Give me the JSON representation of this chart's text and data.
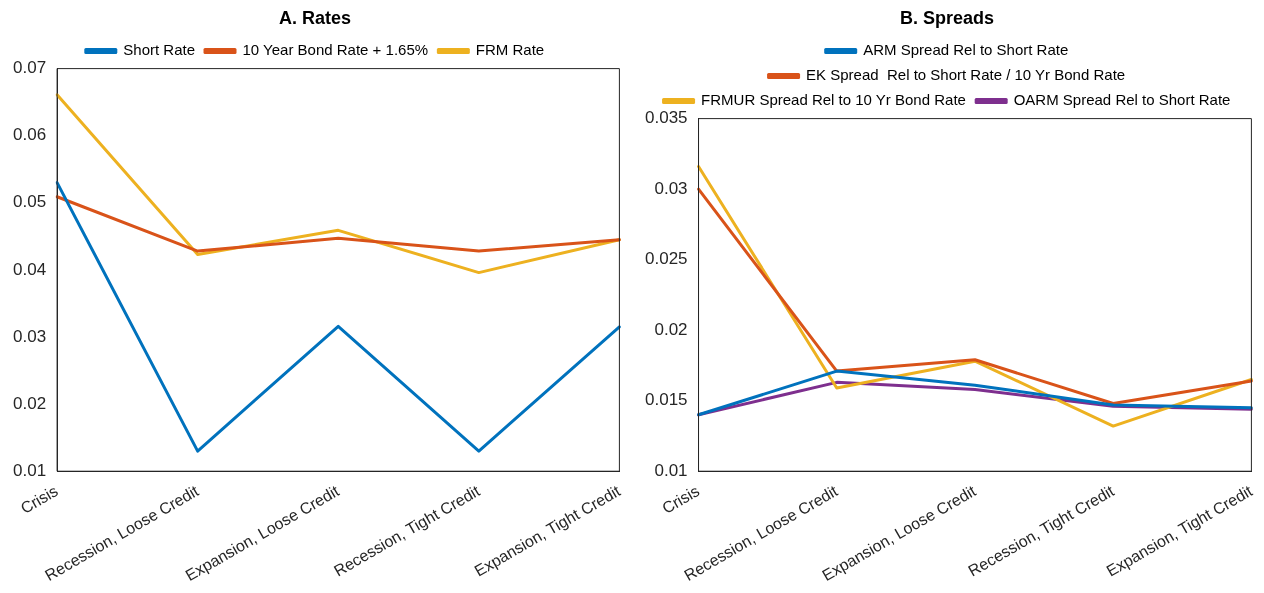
{
  "chart_data": [
    {
      "type": "line",
      "title": "A. Rates",
      "categories": [
        "Crisis",
        "Recession, Loose Credit",
        "Expansion, Loose Credit",
        "Recession, Tight Credit",
        "Expansion, Tight Credit"
      ],
      "series": [
        {
          "name": "Short Rate",
          "color": "#0072bd",
          "values": [
            0.053,
            0.013,
            0.0316,
            0.013,
            0.0315
          ]
        },
        {
          "name": "10 Year Bond Rate + 1.65%",
          "color": "#d95319",
          "values": [
            0.0509,
            0.0428,
            0.0447,
            0.0428,
            0.0445
          ]
        },
        {
          "name": "FRM Rate",
          "color": "#edb120",
          "values": [
            0.0661,
            0.0423,
            0.0459,
            0.0396,
            0.0445
          ]
        }
      ],
      "ylim": [
        0.01,
        0.07
      ],
      "yticks": [
        0.01,
        0.02,
        0.03,
        0.04,
        0.05,
        0.06,
        0.07
      ],
      "grid": false,
      "legend": "top",
      "marker": "none",
      "line_style": "solid"
    },
    {
      "type": "line",
      "title": "B. Spreads",
      "categories": [
        "Crisis",
        "Recession, Loose Credit",
        "Expansion, Loose Credit",
        "Recession, Tight Credit",
        "Expansion, Tight Credit"
      ],
      "series": [
        {
          "name": "ARM Spread Rel to Short Rate",
          "color": "#0072bd",
          "values": [
            0.014,
            0.0171,
            0.0161,
            0.0147,
            0.0145
          ]
        },
        {
          "name": "EK Spread  Rel to Short Rate / 10 Yr Bond Rate",
          "color": "#d95319",
          "values": [
            0.03,
            0.0171,
            0.0179,
            0.0148,
            0.0164
          ]
        },
        {
          "name": "FRMUR Spread Rel to 10 Yr Bond Rate",
          "color": "#edb120",
          "values": [
            0.0316,
            0.0159,
            0.0178,
            0.0132,
            0.0165
          ]
        },
        {
          "name": "OARM Spread Rel to Short Rate",
          "color": "#7e2f8e",
          "values": [
            0.014,
            0.0163,
            0.0158,
            0.0146,
            0.0144
          ]
        }
      ],
      "ylim": [
        0.01,
        0.035
      ],
      "yticks": [
        0.01,
        0.015,
        0.02,
        0.025,
        0.03,
        0.035
      ],
      "grid": false,
      "legend": "top",
      "marker": "none",
      "line_style": "solid"
    }
  ]
}
